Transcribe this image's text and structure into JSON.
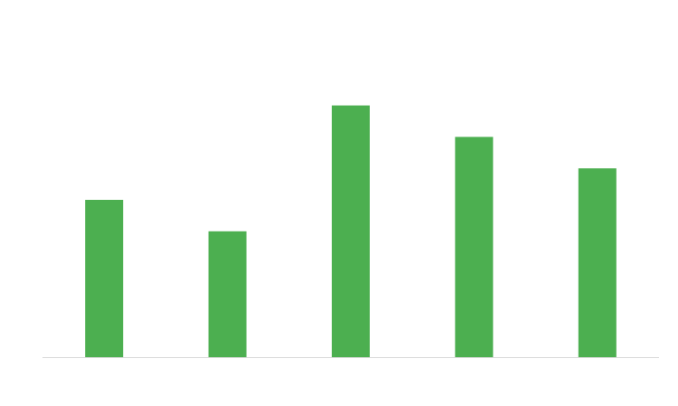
{
  "chart_data": {
    "type": "bar",
    "categories": [
      "",
      "",
      "",
      "",
      ""
    ],
    "values": [
      5,
      4,
      8,
      7,
      6
    ],
    "ylim": [
      0,
      10
    ],
    "grid": false,
    "legend": "none",
    "colors": {
      "bar": "#4caf50",
      "baseline": "#d9d9d9",
      "background": "#ffffff"
    }
  }
}
